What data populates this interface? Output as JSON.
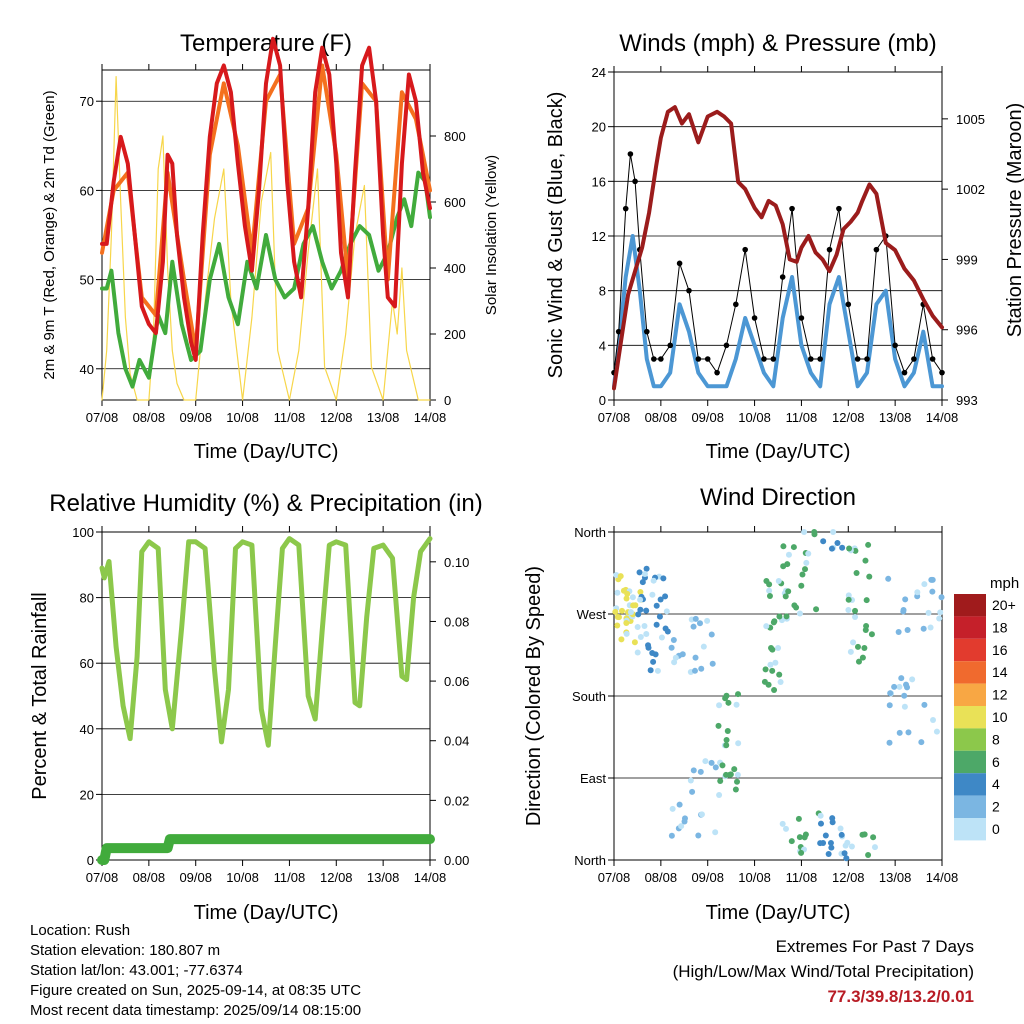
{
  "panels": {
    "temperature": {
      "title": "Temperature (F)",
      "ylabel_left": "2m & 9m T (Red, Orange) & 2m Td (Green)",
      "ylabel_right": "Solar Insolation (Yellow)",
      "xlabel": "Time (Day/UTC)"
    },
    "winds": {
      "title": "Winds (mph) & Pressure (mb)",
      "ylabel_left": "Sonic Wind & Gust (Blue, Black)",
      "ylabel_right": "Station Pressure (Maroon)",
      "xlabel": "Time (Day/UTC)"
    },
    "humidity": {
      "title": "Relative Humidity (%) & Precipitation (in)",
      "ylabel_left": "Percent & Total Rainfall",
      "xlabel": "Time (Day/UTC)"
    },
    "direction": {
      "title": "Wind Direction",
      "ylabel_left": "Direction (Colored By Speed)",
      "xlabel": "Time (Day/UTC)",
      "legend_title": "mph"
    }
  },
  "chart_data": [
    {
      "type": "line",
      "title": "Temperature (F)",
      "xlabel": "Time (Day/UTC)",
      "ylabel": "2m & 9m T (Red, Orange) & 2m Td (Green)",
      "ylabel_right": "Solar Insolation (Yellow)",
      "x_ticks": [
        "07/08",
        "08/08",
        "09/08",
        "10/08",
        "11/08",
        "12/08",
        "13/08",
        "14/08"
      ],
      "xlim": [
        0,
        7
      ],
      "ylim": [
        36.5,
        73.5
      ],
      "y_ticks": [
        40,
        50,
        60,
        70
      ],
      "ylim_right": [
        0,
        1000
      ],
      "y_ticks_right": [
        0,
        200,
        400,
        600,
        800
      ],
      "grid": true,
      "series": [
        {
          "name": "2m T",
          "axis": "left",
          "color": "#d7191c",
          "x": [
            0,
            0.1,
            0.25,
            0.4,
            0.55,
            0.7,
            0.85,
            1,
            1.15,
            1.3,
            1.4,
            1.5,
            1.6,
            1.75,
            1.9,
            2,
            2.15,
            2.3,
            2.45,
            2.6,
            2.75,
            2.9,
            3.05,
            3.2,
            3.35,
            3.5,
            3.65,
            3.8,
            3.95,
            4.1,
            4.25,
            4.4,
            4.55,
            4.7,
            4.85,
            5.0,
            5.1,
            5.25,
            5.4,
            5.55,
            5.7,
            5.85,
            6.0,
            6.1,
            6.25,
            6.4,
            6.55,
            6.7,
            6.85,
            7.0
          ],
          "y": [
            54,
            54,
            61,
            66,
            63,
            55,
            47,
            45,
            44,
            52,
            64,
            63,
            55,
            48,
            43,
            41,
            55,
            66,
            72,
            74,
            71,
            63,
            56,
            51,
            60,
            72,
            77,
            74,
            61,
            52,
            48,
            58,
            71,
            76,
            73,
            63,
            53,
            48,
            62,
            74,
            76,
            70,
            55,
            48,
            47,
            63,
            73,
            70,
            62,
            58
          ]
        },
        {
          "name": "9m T",
          "axis": "left",
          "color": "#f4701e",
          "x": [
            0,
            0.25,
            0.55,
            0.85,
            1.15,
            1.4,
            1.75,
            2,
            2.3,
            2.6,
            2.9,
            3.2,
            3.5,
            3.8,
            4.1,
            4.4,
            4.7,
            5.0,
            5.25,
            5.55,
            5.85,
            6.1,
            6.4,
            6.7,
            7.0
          ],
          "y": [
            53,
            60,
            62,
            48,
            46,
            62,
            50,
            42,
            64,
            72,
            65,
            53,
            70,
            73,
            54,
            58,
            74,
            64,
            50,
            72,
            70,
            50,
            71,
            68,
            60
          ]
        },
        {
          "name": "2m Td",
          "axis": "left",
          "color": "#41ab3c",
          "x": [
            0,
            0.1,
            0.2,
            0.35,
            0.5,
            0.65,
            0.8,
            1,
            1.2,
            1.35,
            1.5,
            1.7,
            1.9,
            2.1,
            2.3,
            2.5,
            2.7,
            2.9,
            3.1,
            3.3,
            3.5,
            3.7,
            3.9,
            4.1,
            4.3,
            4.5,
            4.7,
            4.9,
            5.1,
            5.3,
            5.5,
            5.7,
            5.9,
            6.1,
            6.3,
            6.45,
            6.6,
            6.75,
            6.9,
            7.0
          ],
          "y": [
            49,
            49,
            51,
            44,
            40,
            38,
            41,
            39,
            46,
            44,
            52,
            45,
            41,
            42,
            50,
            54,
            48,
            45,
            52,
            49,
            55,
            50,
            48,
            49,
            54,
            56,
            52,
            49,
            51,
            54,
            56,
            55,
            51,
            53,
            57,
            59,
            56,
            62,
            61,
            57
          ]
        },
        {
          "name": "Solar Insolation",
          "axis": "right",
          "color": "#f7d64a",
          "x": [
            0,
            0.1,
            0.2,
            0.3,
            0.4,
            0.5,
            0.6,
            0.75,
            1,
            1.1,
            1.2,
            1.3,
            1.4,
            1.5,
            1.6,
            1.75,
            2,
            2.2,
            2.4,
            2.6,
            2.75,
            3,
            3.2,
            3.4,
            3.6,
            3.75,
            4,
            4.2,
            4.4,
            4.6,
            4.75,
            5,
            5.2,
            5.4,
            5.6,
            5.75,
            6,
            6.1,
            6.2,
            6.3,
            6.4,
            6.5,
            6.75,
            7
          ],
          "y": [
            0,
            150,
            500,
            980,
            600,
            250,
            80,
            0,
            0,
            200,
            700,
            800,
            400,
            150,
            50,
            0,
            0,
            300,
            550,
            700,
            300,
            0,
            250,
            600,
            750,
            150,
            0,
            150,
            450,
            700,
            100,
            0,
            200,
            500,
            650,
            100,
            0,
            150,
            300,
            200,
            400,
            150,
            0,
            0
          ]
        }
      ]
    },
    {
      "type": "line",
      "title": "Winds (mph) & Pressure (mb)",
      "xlabel": "Time (Day/UTC)",
      "ylabel": "Sonic Wind & Gust (Blue, Black)",
      "ylabel_right": "Station Pressure (Maroon)",
      "x_ticks": [
        "07/08",
        "08/08",
        "09/08",
        "10/08",
        "11/08",
        "12/08",
        "13/08",
        "14/08"
      ],
      "xlim": [
        0,
        7
      ],
      "ylim": [
        0,
        24
      ],
      "y_ticks": [
        0,
        4,
        8,
        12,
        16,
        20,
        24
      ],
      "ylim_right": [
        993,
        1007
      ],
      "y_ticks_right": [
        993,
        996,
        999,
        1002,
        1005
      ],
      "grid": true,
      "series": [
        {
          "name": "Sonic Wind",
          "axis": "left",
          "color": "#4c97d4",
          "x": [
            0,
            0.1,
            0.25,
            0.4,
            0.55,
            0.7,
            0.85,
            1,
            1.2,
            1.4,
            1.6,
            1.8,
            2,
            2.2,
            2.4,
            2.6,
            2.8,
            3,
            3.2,
            3.4,
            3.6,
            3.8,
            4,
            4.2,
            4.4,
            4.6,
            4.8,
            5,
            5.2,
            5.4,
            5.6,
            5.8,
            6,
            6.2,
            6.4,
            6.6,
            6.8,
            7
          ],
          "y": [
            1,
            4,
            9,
            12,
            8,
            3,
            1,
            1,
            2,
            7,
            5,
            2,
            1,
            1,
            1,
            3,
            6,
            4,
            2,
            1,
            6,
            9,
            4,
            2,
            1,
            7,
            9,
            5,
            1,
            2,
            7,
            8,
            3,
            1,
            2,
            5,
            1,
            1
          ]
        },
        {
          "name": "Gust",
          "axis": "left",
          "color": "#000000",
          "x": [
            0,
            0.1,
            0.25,
            0.35,
            0.45,
            0.55,
            0.7,
            0.85,
            1,
            1.2,
            1.4,
            1.6,
            1.8,
            2,
            2.2,
            2.4,
            2.6,
            2.8,
            3,
            3.2,
            3.4,
            3.6,
            3.8,
            4,
            4.2,
            4.4,
            4.6,
            4.8,
            5,
            5.2,
            5.4,
            5.6,
            5.8,
            6,
            6.2,
            6.4,
            6.6,
            6.8,
            7
          ],
          "y": [
            2,
            5,
            14,
            18,
            16,
            11,
            5,
            3,
            3,
            4,
            10,
            8,
            3,
            3,
            2,
            4,
            7,
            11,
            6,
            3,
            3,
            9,
            14,
            6,
            3,
            3,
            11,
            14,
            7,
            3,
            3,
            11,
            12,
            4,
            2,
            3,
            7,
            3,
            2
          ]
        },
        {
          "name": "Station Pressure",
          "axis": "right",
          "color": "#9b1c1c",
          "x": [
            0,
            0.15,
            0.3,
            0.45,
            0.6,
            0.75,
            0.9,
            1,
            1.15,
            1.3,
            1.45,
            1.6,
            1.8,
            2,
            2.2,
            2.35,
            2.5,
            2.65,
            2.8,
            3,
            3.15,
            3.3,
            3.45,
            3.6,
            3.75,
            3.9,
            4,
            4.15,
            4.3,
            4.45,
            4.6,
            4.75,
            4.9,
            5.05,
            5.2,
            5.3,
            5.45,
            5.6,
            5.8,
            6,
            6.2,
            6.4,
            6.6,
            6.8,
            7
          ],
          "y": [
            993.5,
            995.5,
            997.5,
            998.5,
            999.5,
            1001,
            1003,
            1004.2,
            1005.3,
            1005.5,
            1004.8,
            1005.2,
            1004,
            1005.1,
            1005.3,
            1005.1,
            1004.8,
            1002.3,
            1002,
            1001.2,
            1000.8,
            1001.5,
            1001.3,
            1000.5,
            999,
            998.9,
            999.5,
            1000,
            999.3,
            999,
            998.5,
            999.2,
            1000.3,
            1000.6,
            1001,
            1001.5,
            1002.2,
            1001.8,
            999.7,
            999.4,
            998.6,
            998.1,
            997.3,
            996.6,
            996.1
          ]
        }
      ]
    },
    {
      "type": "line",
      "title": "Relative Humidity (%) & Precipitation (in)",
      "xlabel": "Time (Day/UTC)",
      "ylabel": "Percent & Total Rainfall",
      "x_ticks": [
        "07/08",
        "08/08",
        "09/08",
        "10/08",
        "11/08",
        "12/08",
        "13/08",
        "14/08"
      ],
      "xlim": [
        0,
        7
      ],
      "ylim": [
        0,
        100
      ],
      "y_ticks": [
        0,
        20,
        40,
        60,
        80,
        100
      ],
      "ylim_right": [
        0,
        0.11
      ],
      "y_ticks_right": [
        "0.00",
        "0.02",
        "0.04",
        "0.06",
        "0.08",
        "0.10"
      ],
      "grid": true,
      "series": [
        {
          "name": "Relative Humidity",
          "axis": "left",
          "color": "#8cc84b",
          "x": [
            0,
            0.05,
            0.15,
            0.3,
            0.45,
            0.6,
            0.75,
            0.85,
            1,
            1.2,
            1.35,
            1.5,
            1.7,
            1.85,
            2,
            2.2,
            2.4,
            2.55,
            2.7,
            2.85,
            3,
            3.2,
            3.4,
            3.55,
            3.7,
            3.85,
            4,
            4.2,
            4.4,
            4.55,
            4.7,
            4.85,
            5,
            5.2,
            5.4,
            5.5,
            5.65,
            5.8,
            6,
            6.2,
            6.4,
            6.5,
            6.65,
            6.8,
            7
          ],
          "y": [
            89,
            86,
            91,
            65,
            47,
            37,
            62,
            94,
            97,
            95,
            52,
            40,
            71,
            97,
            97,
            95,
            58,
            36,
            52,
            95,
            97,
            96,
            46,
            35,
            66,
            95,
            98,
            96,
            50,
            43,
            70,
            96,
            97,
            96,
            48,
            47,
            74,
            95,
            96,
            92,
            56,
            55,
            80,
            94,
            98
          ]
        },
        {
          "name": "Total Rainfall",
          "axis": "right",
          "color": "#41ab3c",
          "x": [
            0,
            0.05,
            0.1,
            1.4,
            1.45,
            7
          ],
          "y": [
            0,
            0.0,
            0.004,
            0.004,
            0.007,
            0.007
          ]
        }
      ]
    },
    {
      "type": "scatter",
      "title": "Wind Direction",
      "xlabel": "Time (Day/UTC)",
      "ylabel": "Direction (Colored By Speed)",
      "x_ticks": [
        "07/08",
        "08/08",
        "09/08",
        "10/08",
        "11/08",
        "12/08",
        "13/08",
        "14/08"
      ],
      "xlim": [
        0,
        7
      ],
      "y_ticks": [
        "North",
        "East",
        "South",
        "West",
        "North"
      ],
      "ylim": [
        0,
        360
      ],
      "grid": true,
      "legend": {
        "title": "mph",
        "position": "right",
        "labels": [
          "20+",
          "18",
          "16",
          "14",
          "12",
          "10",
          "8",
          "6",
          "4",
          "2",
          "0"
        ],
        "colors": [
          "#a01b1c",
          "#c5202a",
          "#e23b2e",
          "#f06a2e",
          "#f8a744",
          "#e9e157",
          "#8cc84b",
          "#4da868",
          "#3e88c6",
          "#7bb6e2",
          "#bde3f7"
        ]
      },
      "points_by_window": [
        {
          "x_range": [
            0,
            0.6
          ],
          "directions": [
            265,
            280,
            295,
            300,
            275,
            250
          ],
          "speed": 10
        },
        {
          "x_range": [
            0.5,
            1.2
          ],
          "directions": [
            240,
            260,
            280,
            300,
            320,
            220
          ],
          "speed": 4
        },
        {
          "x_range": [
            1.2,
            2.2
          ],
          "directions": [
            230,
            210,
            250,
            100,
            60,
            30
          ],
          "speed": 2
        },
        {
          "x_range": [
            2.2,
            2.7
          ],
          "directions": [
            180,
            140,
            100,
            80
          ],
          "speed": 6
        },
        {
          "x_range": [
            3.2,
            3.6
          ],
          "directions": [
            300,
            260,
            220,
            200
          ],
          "speed": 6
        },
        {
          "x_range": [
            3.6,
            4.4
          ],
          "directions": [
            20,
            40,
            350,
            330,
            300,
            270
          ],
          "speed": 6
        },
        {
          "x_range": [
            4.4,
            5.0
          ],
          "directions": [
            350,
            20,
            40,
            10
          ],
          "speed": 4
        },
        {
          "x_range": [
            5.0,
            5.6
          ],
          "directions": [
            230,
            260,
            300,
            340,
            20
          ],
          "speed": 6
        },
        {
          "x_range": [
            5.8,
            7.0
          ],
          "directions": [
            260,
            280,
            300,
            200,
            180,
            140
          ],
          "speed": 2
        }
      ]
    }
  ],
  "footer": {
    "location": "Location: Rush",
    "elevation": "Station elevation: 180.807 m",
    "latlon": "Station lat/lon: 43.001; -77.6374",
    "created": "Figure created on Sun, 2025-09-14, at 08:35 UTC",
    "recent": "Most recent data timestamp: 2025/09/14 08:15:00"
  },
  "extremes": {
    "heading": "Extremes For Past 7 Days",
    "subheading": "(High/Low/Max Wind/Total Precipitation)",
    "values": "77.3/39.8/13.2/0.01"
  }
}
